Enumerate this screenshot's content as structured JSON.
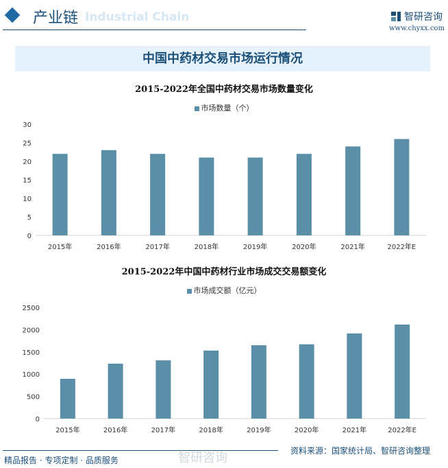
{
  "header": {
    "section": "产业链",
    "section_en": "Industrial Chain",
    "brand": "智研咨询",
    "url": "www.chyxx.com"
  },
  "banner_title": "中国中药材交易市场运行情况",
  "chart_data": [
    {
      "type": "bar",
      "title": "2015-2022年全国中药材交易市场数量变化",
      "legend": [
        "市场数量（个）"
      ],
      "categories": [
        "2015年",
        "2016年",
        "2017年",
        "2018年",
        "2019年",
        "2020年",
        "2021年",
        "2022年E"
      ],
      "values": [
        22,
        23,
        22,
        21,
        21,
        22,
        24,
        26
      ],
      "ylim": [
        0,
        30
      ],
      "yticks": [
        0,
        5,
        10,
        15,
        20,
        25,
        30
      ],
      "color": "#5b8fa8",
      "grid": false,
      "legend_position": "top"
    },
    {
      "type": "bar",
      "title": "2015-2022年中国中药材行业市场成交交易额变化",
      "legend": [
        "市场成交额（亿元）"
      ],
      "categories": [
        "2015年",
        "2016年",
        "2017年",
        "2018年",
        "2019年",
        "2020年",
        "2021年",
        "2022年E"
      ],
      "values": [
        895,
        1235,
        1310,
        1530,
        1650,
        1670,
        1915,
        2115
      ],
      "ylim": [
        0,
        2500
      ],
      "yticks": [
        0,
        500,
        1000,
        1500,
        2000,
        2500
      ],
      "color": "#5b8fa8",
      "grid": false,
      "legend_position": "top"
    }
  ],
  "footer": {
    "left": "精品报告 · 专项定制 · 品质服务",
    "source": "资料来源：国家统计局、智研咨询整理",
    "watermark": "智研咨询"
  }
}
